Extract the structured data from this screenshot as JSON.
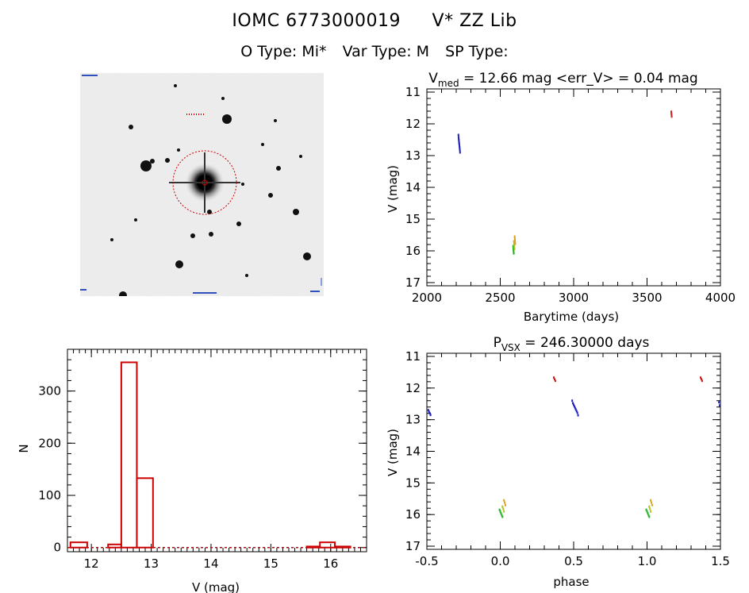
{
  "header": {
    "catalog_id": "IOMC 6773000019",
    "star_name": "V* ZZ Lib",
    "o_type": "O Type: Mi*",
    "var_type": "Var Type: M",
    "sp_type": "SP Type:"
  },
  "finder_chart": {
    "marker_color": "#cc0000"
  },
  "chart_data": [
    {
      "id": "light_curve",
      "type": "scatter",
      "title_main": "V",
      "title_sub": "med",
      "title_rest": " = 12.66 mag <err_V> = 0.04 mag",
      "xlabel": "Barytime (days)",
      "ylabel": "V (mag)",
      "xlim": [
        2000,
        4000
      ],
      "ylim": [
        17.1,
        10.9
      ],
      "xticks": [
        2000,
        2500,
        3000,
        3500,
        4000
      ],
      "yticks": [
        11,
        12,
        13,
        14,
        15,
        16,
        17
      ],
      "series": [
        {
          "color": "#2020c0",
          "x": [
            2215,
            2216,
            2217,
            2218,
            2219,
            2220,
            2221,
            2222,
            2223,
            2224,
            2225,
            2226
          ],
          "y": [
            12.35,
            12.42,
            12.48,
            12.52,
            12.57,
            12.61,
            12.65,
            12.7,
            12.74,
            12.79,
            12.84,
            12.9
          ]
        },
        {
          "color": "#20b020",
          "x": [
            2588,
            2589,
            2590,
            2591,
            2592
          ],
          "y": [
            15.85,
            15.92,
            15.98,
            16.02,
            16.08
          ]
        },
        {
          "color": "#b0c020",
          "x": [
            2593,
            2594,
            2595,
            2596,
            2597
          ],
          "y": [
            15.7,
            15.76,
            15.82,
            15.88,
            15.94
          ]
        },
        {
          "color": "#e0a020",
          "x": [
            2598,
            2599,
            2600,
            2601,
            2602
          ],
          "y": [
            15.55,
            15.6,
            15.66,
            15.72,
            15.78
          ]
        },
        {
          "color": "#cc2020",
          "x": [
            3665,
            3666,
            3667,
            3668
          ],
          "y": [
            11.62,
            11.67,
            11.72,
            11.77
          ]
        }
      ]
    },
    {
      "id": "histogram",
      "type": "bar",
      "xlabel": "V (mag)",
      "ylabel": "N",
      "xlim": [
        11.6,
        16.6
      ],
      "ylim": [
        -8,
        380
      ],
      "xticks": [
        12,
        13,
        14,
        15,
        16
      ],
      "yticks": [
        0,
        100,
        200,
        300
      ],
      "bar_color": "#cc0000",
      "bins": [
        {
          "x0": 11.65,
          "x1": 11.93,
          "count": 10
        },
        {
          "x0": 12.28,
          "x1": 12.5,
          "count": 6
        },
        {
          "x0": 12.5,
          "x1": 12.76,
          "count": 355
        },
        {
          "x0": 12.76,
          "x1": 13.03,
          "count": 133
        },
        {
          "x0": 15.6,
          "x1": 15.82,
          "count": 2
        },
        {
          "x0": 15.82,
          "x1": 16.07,
          "count": 10
        },
        {
          "x0": 16.07,
          "x1": 16.33,
          "count": 2
        }
      ]
    },
    {
      "id": "phase_curve",
      "type": "scatter",
      "title_main": "P",
      "title_sub": "VSX",
      "title_rest": " = 246.30000 days",
      "xlabel": "phase",
      "ylabel": "V (mag)",
      "xlim": [
        -0.5,
        1.5
      ],
      "ylim": [
        17.1,
        10.9
      ],
      "xticks": [
        -0.5,
        0.0,
        0.5,
        1.0,
        1.5
      ],
      "xticklabels": [
        "-0.5",
        "0.0",
        "0.5",
        "1.0",
        "1.5"
      ],
      "yticks": [
        11,
        12,
        13,
        14,
        15,
        16,
        17
      ],
      "series": [
        {
          "color": "#2020c0",
          "x": [
            -0.49,
            -0.485,
            -0.48,
            -0.475,
            0.49,
            0.495,
            0.5,
            0.505,
            0.51,
            0.515,
            0.52,
            0.525,
            0.53,
            1.49,
            1.495
          ],
          "y": [
            12.7,
            12.75,
            12.8,
            12.85,
            12.4,
            12.48,
            12.53,
            12.58,
            12.63,
            12.68,
            12.73,
            12.78,
            12.86,
            12.45,
            12.55
          ]
        },
        {
          "color": "#20b020",
          "x": [
            -0.005,
            0.0,
            0.005,
            0.01,
            0.015,
            0.995,
            1.0,
            1.005,
            1.01,
            1.015
          ],
          "y": [
            15.85,
            15.9,
            15.96,
            16.02,
            16.07,
            15.85,
            15.9,
            15.96,
            16.02,
            16.07
          ]
        },
        {
          "color": "#b0c020",
          "x": [
            0.015,
            0.02,
            0.025,
            1.015,
            1.02,
            1.025
          ],
          "y": [
            15.75,
            15.82,
            15.9,
            15.75,
            15.82,
            15.9
          ]
        },
        {
          "color": "#e0a020",
          "x": [
            0.025,
            0.03,
            0.035,
            1.025,
            1.03,
            1.035
          ],
          "y": [
            15.55,
            15.62,
            15.7,
            15.55,
            15.62,
            15.7
          ]
        },
        {
          "color": "#cc2020",
          "x": [
            0.365,
            0.37,
            0.375,
            1.365,
            1.37,
            1.375
          ],
          "y": [
            11.67,
            11.72,
            11.77,
            11.67,
            11.72,
            11.77
          ]
        }
      ]
    }
  ]
}
